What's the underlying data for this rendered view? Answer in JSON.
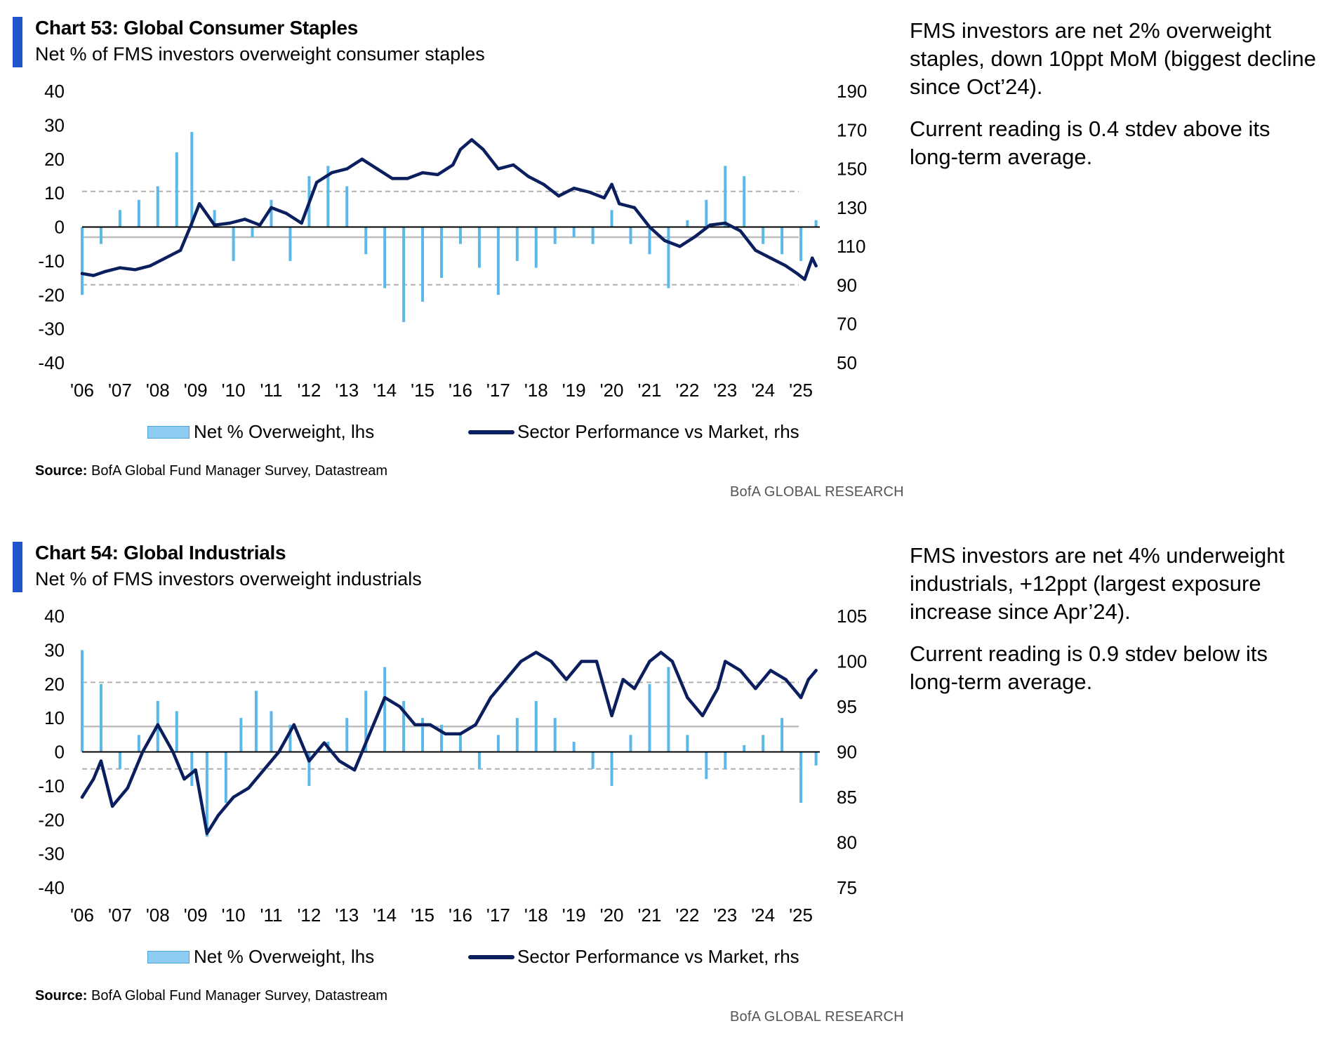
{
  "chart_data": [
    {
      "type": "bar+line",
      "title": "Chart 53: Global Consumer Staples",
      "subtitle": "Net % of FMS investors overweight consumer staples",
      "left_axis": {
        "ylim": [
          -40,
          40
        ],
        "ticks": [
          "40",
          "30",
          "20",
          "10",
          "0",
          "-10",
          "-20",
          "-30",
          "-40"
        ]
      },
      "right_axis": {
        "ylim": [
          50,
          190
        ],
        "ticks": [
          "190",
          "170",
          "150",
          "130",
          "110",
          "90",
          "70",
          "50"
        ]
      },
      "x_ticks": [
        "'06",
        "'07",
        "'08",
        "'09",
        "'10",
        "'11",
        "'12",
        "'13",
        "'14",
        "'15",
        "'16",
        "'17",
        "'18",
        "'19",
        "'20",
        "'21",
        "'22",
        "'23",
        "'24",
        "'25"
      ],
      "x_range": [
        2006.0,
        2025.5
      ],
      "reference_lines": {
        "average": -3,
        "upper": 10.5,
        "lower": -17
      },
      "series": [
        {
          "name": "Net % Overweight, lhs",
          "axis": "left",
          "kind": "bar",
          "x": [
            2006.0,
            2006.5,
            2007.0,
            2007.5,
            2008.0,
            2008.5,
            2008.9,
            2009.5,
            2010.0,
            2010.5,
            2011.0,
            2011.5,
            2012.0,
            2012.5,
            2013.0,
            2013.5,
            2014.0,
            2014.5,
            2015.0,
            2015.5,
            2016.0,
            2016.5,
            2017.0,
            2017.5,
            2018.0,
            2018.5,
            2019.0,
            2019.5,
            2020.0,
            2020.5,
            2021.0,
            2021.5,
            2022.0,
            2022.5,
            2023.0,
            2023.5,
            2024.0,
            2024.5,
            2025.0,
            2025.4
          ],
          "values": [
            -20,
            -5,
            5,
            8,
            12,
            22,
            28,
            5,
            -10,
            -3,
            8,
            -10,
            15,
            18,
            12,
            -8,
            -18,
            -28,
            -22,
            -15,
            -5,
            -12,
            -20,
            -10,
            -12,
            -5,
            -3,
            -5,
            5,
            -5,
            -8,
            -18,
            2,
            8,
            18,
            15,
            -5,
            -8,
            -10,
            2
          ]
        },
        {
          "name": "Sector Performance vs Market, rhs",
          "axis": "right",
          "kind": "line",
          "x": [
            2006.0,
            2006.3,
            2006.6,
            2007.0,
            2007.4,
            2007.8,
            2008.2,
            2008.6,
            2008.9,
            2009.1,
            2009.5,
            2009.9,
            2010.3,
            2010.7,
            2011.0,
            2011.4,
            2011.8,
            2012.2,
            2012.6,
            2013.0,
            2013.4,
            2013.8,
            2014.2,
            2014.6,
            2015.0,
            2015.4,
            2015.8,
            2016.0,
            2016.3,
            2016.6,
            2017.0,
            2017.4,
            2017.8,
            2018.2,
            2018.6,
            2019.0,
            2019.4,
            2019.8,
            2020.0,
            2020.2,
            2020.6,
            2021.0,
            2021.4,
            2021.8,
            2022.2,
            2022.6,
            2023.0,
            2023.4,
            2023.8,
            2024.2,
            2024.6,
            2024.9,
            2025.1,
            2025.3,
            2025.4
          ],
          "values": [
            96,
            95,
            97,
            99,
            98,
            100,
            104,
            108,
            122,
            132,
            121,
            122,
            124,
            121,
            130,
            127,
            122,
            143,
            148,
            150,
            155,
            150,
            145,
            145,
            148,
            147,
            152,
            160,
            165,
            160,
            150,
            152,
            146,
            142,
            136,
            140,
            138,
            135,
            142,
            132,
            130,
            120,
            113,
            110,
            115,
            121,
            122,
            118,
            108,
            104,
            100,
            96,
            93,
            104,
            100
          ]
        }
      ],
      "legend_position": "bottom"
    },
    {
      "type": "bar+line",
      "title": "Chart 54: Global Industrials",
      "subtitle": "Net % of FMS investors overweight industrials",
      "left_axis": {
        "ylim": [
          -40,
          40
        ],
        "ticks": [
          "40",
          "30",
          "20",
          "10",
          "0",
          "-10",
          "-20",
          "-30",
          "-40"
        ]
      },
      "right_axis": {
        "ylim": [
          75,
          105
        ],
        "ticks": [
          "105",
          "100",
          "95",
          "90",
          "85",
          "80",
          "75"
        ]
      },
      "x_ticks": [
        "'06",
        "'07",
        "'08",
        "'09",
        "'10",
        "'11",
        "'12",
        "'13",
        "'14",
        "'15",
        "'16",
        "'17",
        "'18",
        "'19",
        "'20",
        "'21",
        "'22",
        "'23",
        "'24",
        "'25"
      ],
      "x_range": [
        2006.0,
        2025.5
      ],
      "reference_lines": {
        "average": 7.5,
        "upper": 20.5,
        "lower": -5
      },
      "series": [
        {
          "name": "Net % Overweight, lhs",
          "axis": "left",
          "kind": "bar",
          "x": [
            2006.0,
            2006.5,
            2007.0,
            2007.5,
            2008.0,
            2008.5,
            2008.9,
            2009.3,
            2009.8,
            2010.2,
            2010.6,
            2011.0,
            2011.5,
            2012.0,
            2012.5,
            2013.0,
            2013.5,
            2014.0,
            2014.5,
            2015.0,
            2015.5,
            2016.0,
            2016.5,
            2017.0,
            2017.5,
            2018.0,
            2018.5,
            2019.0,
            2019.5,
            2020.0,
            2020.5,
            2021.0,
            2021.5,
            2022.0,
            2022.5,
            2023.0,
            2023.5,
            2024.0,
            2024.5,
            2025.0,
            2025.4
          ],
          "values": [
            30,
            20,
            -5,
            5,
            15,
            12,
            -10,
            -25,
            -15,
            10,
            18,
            12,
            8,
            -10,
            3,
            10,
            18,
            25,
            15,
            10,
            8,
            5,
            -5,
            5,
            10,
            15,
            10,
            3,
            -5,
            -10,
            5,
            20,
            25,
            5,
            -8,
            -5,
            2,
            5,
            10,
            -15,
            -4
          ]
        },
        {
          "name": "Sector Performance vs Market, rhs",
          "axis": "right",
          "kind": "line",
          "x": [
            2006.0,
            2006.3,
            2006.5,
            2006.8,
            2007.2,
            2007.6,
            2008.0,
            2008.4,
            2008.7,
            2009.0,
            2009.3,
            2009.6,
            2010.0,
            2010.4,
            2010.8,
            2011.2,
            2011.6,
            2012.0,
            2012.4,
            2012.8,
            2013.2,
            2013.6,
            2014.0,
            2014.4,
            2014.8,
            2015.2,
            2015.6,
            2016.0,
            2016.4,
            2016.8,
            2017.2,
            2017.6,
            2018.0,
            2018.4,
            2018.8,
            2019.2,
            2019.6,
            2020.0,
            2020.3,
            2020.6,
            2021.0,
            2021.3,
            2021.6,
            2022.0,
            2022.4,
            2022.8,
            2023.0,
            2023.4,
            2023.8,
            2024.2,
            2024.6,
            2025.0,
            2025.2,
            2025.4
          ],
          "values": [
            85,
            87,
            89,
            84,
            86,
            90,
            93,
            90,
            87,
            88,
            81,
            83,
            85,
            86,
            88,
            90,
            93,
            89,
            91,
            89,
            88,
            92,
            96,
            95,
            93,
            93,
            92,
            92,
            93,
            96,
            98,
            100,
            101,
            100,
            98,
            100,
            100,
            94,
            98,
            97,
            100,
            101,
            100,
            96,
            94,
            97,
            100,
            99,
            97,
            99,
            98,
            96,
            98,
            99
          ]
        }
      ],
      "legend_position": "bottom"
    }
  ],
  "panels": [
    {
      "source_label": "Source:",
      "source_text": " BofA Global Fund Manager Survey, Datastream",
      "brand": "BofA GLOBAL RESEARCH",
      "commentary": [
        "FMS investors are net 2% overweight staples, down 10ppt MoM (biggest decline since Oct’24).",
        "Current reading is 0.4 stdev above its long-term average."
      ]
    },
    {
      "source_label": "Source:",
      "source_text": " BofA Global Fund Manager Survey, Datastream",
      "brand": "BofA GLOBAL RESEARCH",
      "commentary": [
        "FMS investors are net 4% underweight industrials, +12ppt (largest exposure increase since Apr’24).",
        "Current reading is 0.9 stdev below its long-term average."
      ]
    }
  ],
  "colors": {
    "bar_fill": "#5ab8ea",
    "line": "#0b1f5e",
    "accent": "#1f55c9",
    "ref_dashed": "#b0b0b0",
    "ref_solid": "#bdbdbd"
  }
}
